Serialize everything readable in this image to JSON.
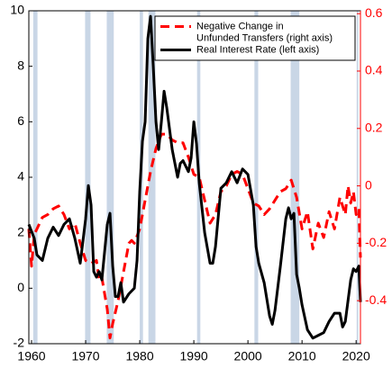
{
  "chart_data": {
    "type": "line",
    "xlim": [
      1959.5,
      2020.8
    ],
    "xticks": [
      1960,
      1970,
      1980,
      1990,
      2000,
      2010,
      2020
    ],
    "ylim": [
      -2,
      10
    ],
    "yticks": [
      -2,
      0,
      2,
      4,
      6,
      8,
      10
    ],
    "y2lim": [
      -0.55,
      0.61
    ],
    "y2ticks": [
      -0.4,
      -0.2,
      0,
      0.2,
      0.4,
      0.6
    ],
    "y2_color": "#ff0000",
    "legend": "upper right",
    "shaded_color": "#c9d6e6",
    "shaded_periods": [
      [
        1960.3,
        1961.1
      ],
      [
        1969.9,
        1970.9
      ],
      [
        1973.9,
        1975.2
      ],
      [
        1980.0,
        1980.6
      ],
      [
        1981.6,
        1982.9
      ],
      [
        1990.6,
        1991.2
      ],
      [
        2001.2,
        2001.9
      ],
      [
        2007.9,
        2009.5
      ],
      [
        2020.1,
        2020.4
      ]
    ],
    "series": [
      {
        "name": [
          "Negative Change in",
          "Unfunded Transfers (right axis)"
        ],
        "color": "#ff0000",
        "dashed": true,
        "axis": "y2",
        "x": [
          1959.5,
          1960,
          1960.5,
          1961,
          1962,
          1963,
          1964,
          1965,
          1966,
          1967,
          1968,
          1969,
          1970,
          1971,
          1972,
          1972.5,
          1973,
          1974,
          1974.5,
          1975,
          1976,
          1977,
          1978,
          1978.5,
          1979,
          1980,
          1981,
          1982,
          1983,
          1984,
          1985,
          1986,
          1987,
          1988,
          1989,
          1990,
          1991,
          1992,
          1993,
          1994,
          1995,
          1996,
          1997,
          1998,
          1999,
          2000,
          2001,
          2002,
          2003,
          2004,
          2005,
          2006,
          2007,
          2008,
          2008.5,
          2009,
          2010,
          2011,
          2012,
          2013,
          2014,
          2015,
          2016,
          2017,
          2018,
          2018.5,
          2019,
          2019.5,
          2020,
          2020.5,
          2020.8
        ],
        "values": [
          -0.15,
          -0.28,
          -0.17,
          -0.15,
          -0.11,
          -0.1,
          -0.08,
          -0.07,
          -0.1,
          -0.15,
          -0.13,
          -0.2,
          -0.26,
          -0.27,
          -0.26,
          -0.33,
          -0.32,
          -0.43,
          -0.53,
          -0.48,
          -0.4,
          -0.3,
          -0.2,
          -0.19,
          -0.2,
          -0.15,
          -0.05,
          0.05,
          0.13,
          0.18,
          0.18,
          0.16,
          0.15,
          0.15,
          0.1,
          0.04,
          0.03,
          -0.05,
          -0.13,
          -0.1,
          -0.02,
          0.0,
          0.04,
          0.05,
          0.04,
          -0.01,
          -0.06,
          -0.07,
          -0.1,
          -0.08,
          -0.05,
          -0.02,
          -0.01,
          0.02,
          -0.01,
          -0.04,
          -0.15,
          -0.09,
          -0.22,
          -0.13,
          -0.18,
          -0.09,
          -0.15,
          -0.04,
          -0.1,
          0.0,
          -0.06,
          -0.02,
          -0.1,
          -0.08,
          -0.25
        ]
      },
      {
        "name": [
          "Real Interest Rate (left axis)"
        ],
        "color": "#000000",
        "dashed": false,
        "x": [
          1959.5,
          1960.5,
          1961,
          1962,
          1963,
          1964,
          1965,
          1966,
          1967,
          1968,
          1969,
          1970,
          1970.5,
          1971,
          1971.5,
          1972,
          1972.5,
          1973,
          1974,
          1974.5,
          1975,
          1975.5,
          1976,
          1976.5,
          1977,
          1978,
          1979,
          1979.5,
          1980,
          1980.5,
          1981,
          1981.5,
          1982,
          1982.5,
          1983,
          1983.5,
          1984,
          1984.5,
          1985,
          1986,
          1987,
          1987.5,
          1988,
          1989,
          1989.5,
          1990,
          1990.5,
          1991,
          1992,
          1993,
          1993.5,
          1994,
          1995,
          1996,
          1997,
          1998,
          1999,
          2000,
          2001,
          2001.5,
          2002,
          2003,
          2004,
          2004.5,
          2005,
          2006,
          2007,
          2007.5,
          2008,
          2008.5,
          2009,
          2009.5,
          2010,
          2011,
          2012,
          2013,
          2014,
          2015,
          2016,
          2017,
          2017.5,
          2018,
          2019,
          2019.5,
          2020,
          2020.5,
          2020.8
        ],
        "values": [
          2.3,
          1.8,
          1.2,
          1.0,
          1.8,
          2.2,
          1.9,
          2.3,
          2.5,
          1.8,
          0.9,
          2.5,
          3.7,
          3.0,
          0.6,
          0.4,
          0.6,
          0.3,
          2.3,
          2.7,
          0.8,
          -0.3,
          -0.3,
          0.2,
          -0.5,
          -0.2,
          0.0,
          1.0,
          3.5,
          5.3,
          6.0,
          9.0,
          9.8,
          8.0,
          6.0,
          5.0,
          6.0,
          7.1,
          6.5,
          5.0,
          4.0,
          4.5,
          4.6,
          4.2,
          4.7,
          6.0,
          5.2,
          3.8,
          2.0,
          0.9,
          0.9,
          1.5,
          3.6,
          3.8,
          4.2,
          3.8,
          4.3,
          4.1,
          3.0,
          1.5,
          0.9,
          0.2,
          -1.0,
          -1.3,
          -0.8,
          0.8,
          2.5,
          2.9,
          2.5,
          2.7,
          0.5,
          0.0,
          -0.6,
          -1.5,
          -1.8,
          -1.7,
          -1.6,
          -1.2,
          -0.9,
          -0.9,
          -1.4,
          -1.2,
          0.3,
          0.7,
          0.6,
          0.8,
          -0.5
        ]
      }
    ]
  }
}
